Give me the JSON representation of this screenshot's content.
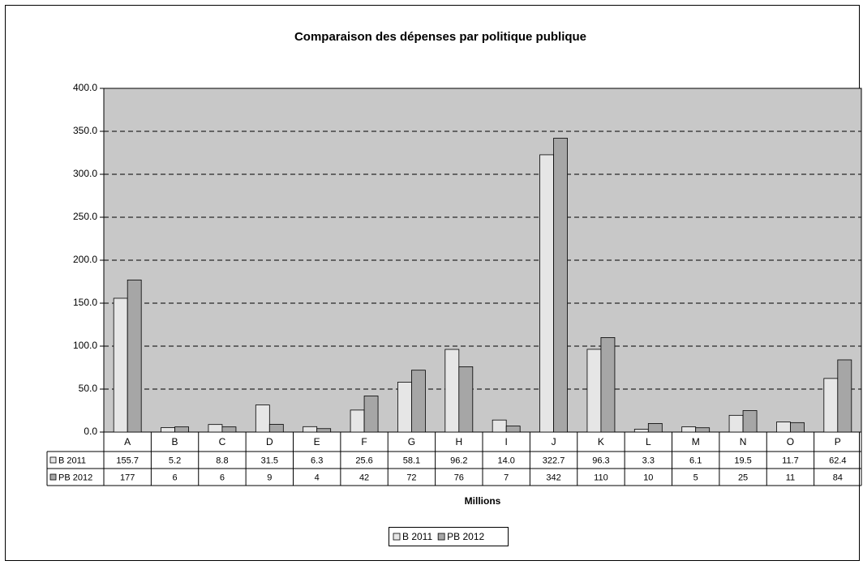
{
  "chart_data": {
    "type": "bar",
    "title": "Comparaison des dépenses par politique publique",
    "x_label": "Millions",
    "categories": [
      "A",
      "B",
      "C",
      "D",
      "E",
      "F",
      "G",
      "H",
      "I",
      "J",
      "K",
      "L",
      "M",
      "N",
      "O",
      "P"
    ],
    "series": [
      {
        "name": "B 2011",
        "color": "#e6e6e6",
        "values": [
          155.7,
          5.2,
          8.8,
          31.5,
          6.3,
          25.6,
          58.1,
          96.2,
          14.0,
          322.7,
          96.3,
          3.3,
          6.1,
          19.5,
          11.7,
          62.4
        ],
        "value_labels": [
          "155.7",
          "5.2",
          "8.8",
          "31.5",
          "6.3",
          "25.6",
          "58.1",
          "96.2",
          "14.0",
          "322.7",
          "96.3",
          "3.3",
          "6.1",
          "19.5",
          "11.7",
          "62.4"
        ]
      },
      {
        "name": "PB 2012",
        "color": "#a6a6a6",
        "values": [
          177,
          6,
          6,
          9,
          4,
          42,
          72,
          76,
          7,
          342,
          110,
          10,
          5,
          25,
          11,
          84
        ]
      }
    ],
    "ylim": [
      0,
      400
    ],
    "yticks": [
      {
        "value": 0,
        "label": "0.0"
      },
      {
        "value": 50,
        "label": "50.0"
      },
      {
        "value": 100,
        "label": "100.0"
      },
      {
        "value": 150,
        "label": "150.0"
      },
      {
        "value": 200,
        "label": "200.0"
      },
      {
        "value": 250,
        "label": "250.0"
      },
      {
        "value": 300,
        "label": "300.0"
      },
      {
        "value": 350,
        "label": "350.0"
      },
      {
        "value": 400,
        "label": "400.0"
      }
    ],
    "grid": true,
    "legend": "bottom"
  }
}
